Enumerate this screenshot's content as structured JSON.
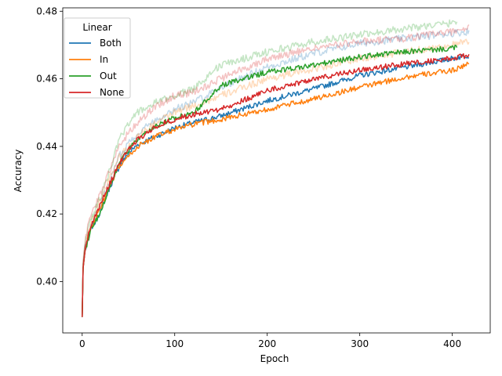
{
  "chart_data": {
    "type": "line",
    "title": "",
    "xlabel": "Epoch",
    "ylabel": "Accuracy",
    "xlim": [
      -21,
      441
    ],
    "ylim": [
      0.3848,
      0.481
    ],
    "xticks": [
      0,
      100,
      200,
      300,
      400
    ],
    "xtick_labels": [
      "0",
      "100",
      "200",
      "300",
      "400"
    ],
    "yticks": [
      0.4,
      0.42,
      0.44,
      0.46,
      0.48
    ],
    "ytick_labels": [
      "0.40",
      "0.42",
      "0.44",
      "0.46",
      "0.48"
    ],
    "grid": false,
    "legend": {
      "title": "Linear",
      "placement": "top-left"
    },
    "series": [
      {
        "name": "Both",
        "color": "#1f77b4",
        "x": [
          0,
          1,
          3,
          6,
          10,
          15,
          20,
          30,
          40,
          50,
          60,
          80,
          100,
          120,
          150,
          200,
          250,
          300,
          350,
          400,
          418
        ],
        "values": [
          0.3895,
          0.404,
          0.409,
          0.412,
          0.416,
          0.418,
          0.421,
          0.428,
          0.434,
          0.438,
          0.4405,
          0.443,
          0.4455,
          0.447,
          0.449,
          0.4535,
          0.457,
          0.461,
          0.4635,
          0.466,
          0.467
        ],
        "light_values": [
          0.3895,
          0.405,
          0.41,
          0.413,
          0.417,
          0.42,
          0.423,
          0.43,
          0.437,
          0.441,
          0.444,
          0.448,
          0.451,
          0.453,
          0.4575,
          0.4635,
          0.4675,
          0.4705,
          0.472,
          0.4735,
          0.474
        ]
      },
      {
        "name": "In",
        "color": "#ff7f0e",
        "x": [
          0,
          1,
          3,
          6,
          10,
          15,
          20,
          30,
          40,
          50,
          60,
          80,
          100,
          120,
          150,
          200,
          250,
          300,
          350,
          400,
          418
        ],
        "values": [
          0.3895,
          0.404,
          0.409,
          0.413,
          0.416,
          0.419,
          0.422,
          0.428,
          0.434,
          0.437,
          0.44,
          0.443,
          0.445,
          0.4465,
          0.448,
          0.451,
          0.454,
          0.4575,
          0.4605,
          0.4625,
          0.4645
        ],
        "light_values": [
          0.3895,
          0.405,
          0.41,
          0.414,
          0.418,
          0.421,
          0.424,
          0.431,
          0.437,
          0.44,
          0.443,
          0.447,
          0.45,
          0.452,
          0.455,
          0.46,
          0.463,
          0.466,
          0.468,
          0.47,
          0.471
        ]
      },
      {
        "name": "Out",
        "color": "#2ca02c",
        "x": [
          0,
          1,
          3,
          6,
          10,
          15,
          20,
          30,
          40,
          50,
          60,
          80,
          100,
          120,
          140,
          150,
          200,
          250,
          300,
          350,
          400,
          405
        ],
        "values": [
          0.3895,
          0.404,
          0.409,
          0.412,
          0.416,
          0.418,
          0.421,
          0.428,
          0.435,
          0.439,
          0.442,
          0.446,
          0.4485,
          0.45,
          0.455,
          0.458,
          0.462,
          0.464,
          0.4665,
          0.468,
          0.469,
          0.4695
        ],
        "light_values": [
          0.3895,
          0.405,
          0.411,
          0.415,
          0.419,
          0.422,
          0.425,
          0.433,
          0.442,
          0.447,
          0.45,
          0.453,
          0.455,
          0.457,
          0.462,
          0.464,
          0.468,
          0.471,
          0.473,
          0.475,
          0.4765,
          0.477
        ]
      },
      {
        "name": "None",
        "color": "#d62728",
        "x": [
          0,
          1,
          3,
          6,
          10,
          15,
          20,
          30,
          40,
          50,
          60,
          80,
          100,
          120,
          150,
          200,
          250,
          300,
          350,
          400,
          418
        ],
        "values": [
          0.3895,
          0.404,
          0.409,
          0.413,
          0.417,
          0.42,
          0.423,
          0.429,
          0.435,
          0.439,
          0.442,
          0.446,
          0.448,
          0.4495,
          0.451,
          0.4565,
          0.46,
          0.4625,
          0.4645,
          0.466,
          0.467
        ],
        "light_values": [
          0.3895,
          0.406,
          0.412,
          0.416,
          0.42,
          0.423,
          0.426,
          0.433,
          0.44,
          0.444,
          0.447,
          0.452,
          0.455,
          0.456,
          0.46,
          0.466,
          0.469,
          0.471,
          0.472,
          0.474,
          0.475
        ]
      }
    ]
  }
}
